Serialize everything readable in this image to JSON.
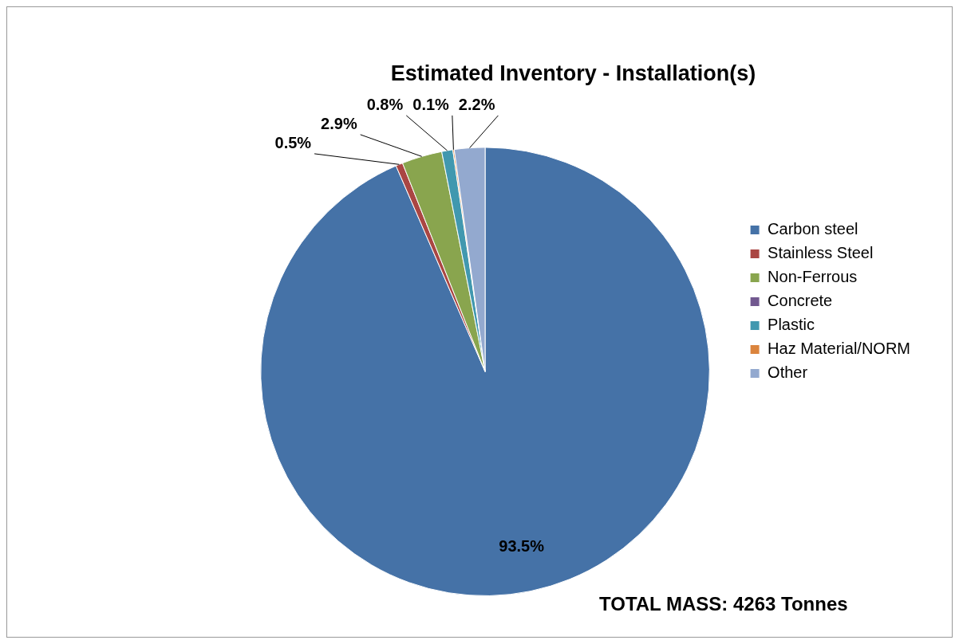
{
  "chart_data": {
    "type": "pie",
    "title": "Estimated Inventory - Installation(s)",
    "categories": [
      "Carbon steel",
      "Stainless Steel",
      "Non-Ferrous",
      "Concrete",
      "Plastic",
      "Haz Material/NORM",
      "Other"
    ],
    "values": [
      93.5,
      0.5,
      2.9,
      0,
      0.8,
      0.1,
      2.2
    ],
    "colors": [
      "#4572a7",
      "#aa4643",
      "#89a54e",
      "#71588f",
      "#4198af",
      "#db843d",
      "#93a9cf"
    ],
    "value_labels": [
      "93.5%",
      "0.5%",
      "2.9%",
      null,
      "0.8%",
      "0.1%",
      "2.2%"
    ],
    "legend": "right",
    "annotations": [
      "TOTAL MASS: 4263 Tonnes"
    ]
  }
}
